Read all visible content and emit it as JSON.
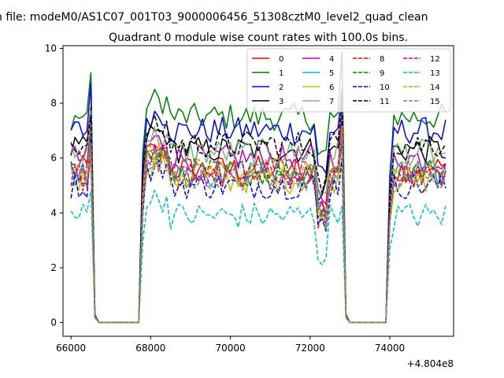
{
  "figure": {
    "suptitle": "n file: modeM0/AS1C07_001T03_9000006456_51308cztM0_level2_quad_clean"
  },
  "chart_data": {
    "type": "line",
    "title": "Quadrant 0 module wise count rates with 100.0s bins.",
    "xlabel": "",
    "ylabel": "",
    "x_offset_label": "+4.804e8",
    "xlim": [
      65800,
      75600
    ],
    "ylim": [
      -0.5,
      10.1
    ],
    "xticks": [
      66000,
      68000,
      70000,
      72000,
      74000
    ],
    "yticks": [
      0,
      2,
      4,
      6,
      8,
      10
    ],
    "grid": false,
    "legend_placement": "top-right",
    "legend_columns": 4,
    "x_start": 66000,
    "x_step": 100,
    "x_end": 75400,
    "gaps": [
      [
        66700,
        67700
      ],
      [
        73000,
        73900
      ]
    ],
    "series": [
      {
        "name": "0",
        "color": "#ff0000",
        "dash": "solid",
        "level": 5.6
      },
      {
        "name": "1",
        "color": "#008000",
        "dash": "solid",
        "level": 7.5
      },
      {
        "name": "2",
        "color": "#0000ff",
        "dash": "solid",
        "level": 7.0
      },
      {
        "name": "3",
        "color": "#000000",
        "dash": "solid",
        "level": 6.3
      },
      {
        "name": "4",
        "color": "#bf00bf",
        "dash": "solid",
        "level": 6.0
      },
      {
        "name": "5",
        "color": "#00bfbf",
        "dash": "solid",
        "level": 5.4
      },
      {
        "name": "6",
        "color": "#bfbf00",
        "dash": "solid",
        "level": 5.2
      },
      {
        "name": "7",
        "color": "#80b380",
        "dash": "solid",
        "level": 6.2
      },
      {
        "name": "8",
        "color": "#ff0000",
        "dash": "dashed",
        "level": 5.3
      },
      {
        "name": "9",
        "color": "#008000",
        "dash": "dashed",
        "level": 5.5
      },
      {
        "name": "10",
        "color": "#0000ff",
        "dash": "dashed",
        "level": 5.0
      },
      {
        "name": "11",
        "color": "#000000",
        "dash": "dashed",
        "level": 6.5
      },
      {
        "name": "12",
        "color": "#bf00bf",
        "dash": "dashed",
        "level": 5.4
      },
      {
        "name": "13",
        "color": "#00bfbf",
        "dash": "dashed",
        "level": 3.9
      },
      {
        "name": "14",
        "color": "#dfa000",
        "dash": "dashed",
        "level": 5.5
      },
      {
        "name": "15",
        "color": "#808080",
        "dash": "dashed",
        "level": 5.3
      }
    ]
  }
}
